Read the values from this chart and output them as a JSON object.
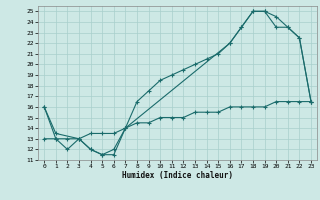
{
  "title": "",
  "xlabel": "Humidex (Indice chaleur)",
  "bg_color": "#cde8e5",
  "line_color": "#1a6b6b",
  "grid_color": "#a8cfcc",
  "xlim": [
    -0.5,
    23.5
  ],
  "ylim": [
    11,
    25.5
  ],
  "xticks": [
    0,
    1,
    2,
    3,
    4,
    5,
    6,
    7,
    8,
    9,
    10,
    11,
    12,
    13,
    14,
    15,
    16,
    17,
    18,
    19,
    20,
    21,
    22,
    23
  ],
  "yticks": [
    11,
    12,
    13,
    14,
    15,
    16,
    17,
    18,
    19,
    20,
    21,
    22,
    23,
    24,
    25
  ],
  "line1_x": [
    0,
    1,
    2,
    3,
    4,
    5,
    6,
    7,
    8,
    9,
    10,
    11,
    12,
    13,
    14,
    15,
    16,
    17,
    18,
    19,
    20,
    21,
    22,
    23
  ],
  "line1_y": [
    16,
    13,
    12,
    13,
    12,
    11.5,
    12,
    14,
    16.5,
    17.5,
    18.5,
    19,
    19.5,
    20,
    20.5,
    21,
    22,
    23.5,
    25,
    25,
    24.5,
    23.5,
    22.5,
    16.5
  ],
  "line2_x": [
    0,
    1,
    3,
    4,
    5,
    6,
    7,
    16,
    17,
    18,
    19,
    20,
    21,
    22,
    23
  ],
  "line2_y": [
    16,
    13.5,
    13,
    12,
    11.5,
    11.5,
    14,
    22,
    23.5,
    25,
    25,
    23.5,
    23.5,
    22.5,
    16.5
  ],
  "line3_x": [
    0,
    1,
    2,
    3,
    4,
    5,
    6,
    7,
    8,
    9,
    10,
    11,
    12,
    13,
    14,
    15,
    16,
    17,
    18,
    19,
    20,
    21,
    22,
    23
  ],
  "line3_y": [
    13,
    13,
    13,
    13,
    13.5,
    13.5,
    13.5,
    14,
    14.5,
    14.5,
    15,
    15,
    15,
    15.5,
    15.5,
    15.5,
    16,
    16,
    16,
    16,
    16.5,
    16.5,
    16.5,
    16.5
  ]
}
